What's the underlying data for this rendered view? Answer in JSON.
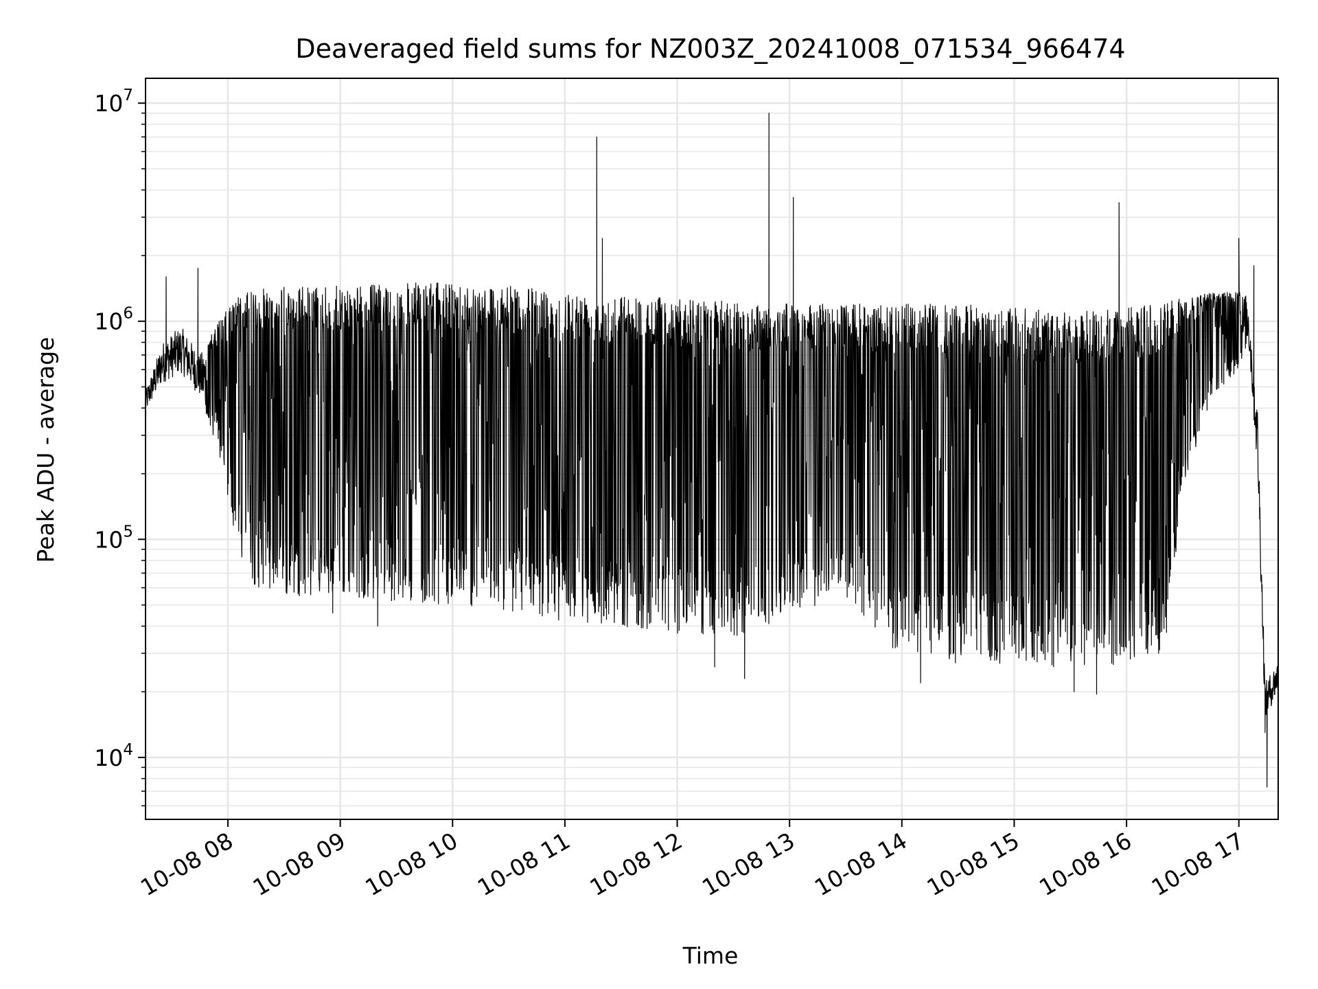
{
  "chart_data": {
    "type": "line",
    "title": "Deaveraged field sums for NZ003Z_20241008_071534_966474",
    "xlabel": "Time",
    "ylabel": "Peak ADU - average",
    "yscale": "log",
    "ylim": [
      5200,
      13000000
    ],
    "xlim": [
      "10-08 07:16",
      "10-08 17:21"
    ],
    "grid": true,
    "line_color": "#000000",
    "grid_color": "#e6e6e6",
    "x_ticks": [
      {
        "hour": 8,
        "label": "10-08 08"
      },
      {
        "hour": 9,
        "label": "10-08 09"
      },
      {
        "hour": 10,
        "label": "10-08 10"
      },
      {
        "hour": 11,
        "label": "10-08 11"
      },
      {
        "hour": 12,
        "label": "10-08 12"
      },
      {
        "hour": 13,
        "label": "10-08 13"
      },
      {
        "hour": 14,
        "label": "10-08 14"
      },
      {
        "hour": 15,
        "label": "10-08 15"
      },
      {
        "hour": 16,
        "label": "10-08 16"
      },
      {
        "hour": 17,
        "label": "10-08 17"
      }
    ],
    "y_ticks": [
      {
        "value": 10000,
        "base": "10",
        "exp": "4"
      },
      {
        "value": 100000,
        "base": "10",
        "exp": "5"
      },
      {
        "value": 1000000,
        "base": "10",
        "exp": "6"
      },
      {
        "value": 10000000,
        "base": "10",
        "exp": "7"
      }
    ],
    "series": [
      {
        "envelope": [
          {
            "time": "07:16",
            "upper": 480000,
            "lower": 380000
          },
          {
            "time": "07:25",
            "upper": 800000,
            "lower": 520000
          },
          {
            "time": "07:35",
            "upper": 950000,
            "lower": 580000
          },
          {
            "time": "07:45",
            "upper": 700000,
            "lower": 450000
          },
          {
            "time": "07:55",
            "upper": 1000000,
            "lower": 250000
          },
          {
            "time": "08:05",
            "upper": 1300000,
            "lower": 90000
          },
          {
            "time": "08:15",
            "upper": 1400000,
            "lower": 60000
          },
          {
            "time": "08:30",
            "upper": 1450000,
            "lower": 55000
          },
          {
            "time": "09:00",
            "upper": 1450000,
            "lower": 55000
          },
          {
            "time": "09:30",
            "upper": 1500000,
            "lower": 52000
          },
          {
            "time": "10:00",
            "upper": 1500000,
            "lower": 50000
          },
          {
            "time": "10:30",
            "upper": 1450000,
            "lower": 47000
          },
          {
            "time": "11:00",
            "upper": 1380000,
            "lower": 42000
          },
          {
            "time": "11:30",
            "upper": 1330000,
            "lower": 40000
          },
          {
            "time": "12:00",
            "upper": 1280000,
            "lower": 37000
          },
          {
            "time": "12:30",
            "upper": 1230000,
            "lower": 35000
          },
          {
            "time": "13:00",
            "upper": 1200000,
            "lower": 45000
          },
          {
            "time": "13:30",
            "upper": 1200000,
            "lower": 55000
          },
          {
            "time": "14:00",
            "upper": 1200000,
            "lower": 28000
          },
          {
            "time": "14:30",
            "upper": 1200000,
            "lower": 27000
          },
          {
            "time": "15:00",
            "upper": 1150000,
            "lower": 26000
          },
          {
            "time": "15:30",
            "upper": 1100000,
            "lower": 25000
          },
          {
            "time": "16:00",
            "upper": 1150000,
            "lower": 27000
          },
          {
            "time": "16:20",
            "upper": 1250000,
            "lower": 30000
          },
          {
            "time": "16:30",
            "upper": 1300000,
            "lower": 150000
          },
          {
            "time": "16:45",
            "upper": 1350000,
            "lower": 450000
          },
          {
            "time": "17:00",
            "upper": 1400000,
            "lower": 600000
          },
          {
            "time": "17:05",
            "upper": 1300000,
            "lower": 800000
          },
          {
            "time": "17:10",
            "upper": 400000,
            "lower": 200000
          },
          {
            "time": "17:14",
            "upper": 22000,
            "lower": 15000
          },
          {
            "time": "17:21",
            "upper": 28000,
            "lower": 20000
          }
        ],
        "spikes": [
          {
            "time": "11:17",
            "value": 7000000
          },
          {
            "time": "11:20",
            "value": 2400000
          },
          {
            "time": "12:49",
            "value": 9000000
          },
          {
            "time": "13:02",
            "value": 3700000
          },
          {
            "time": "15:56",
            "value": 3500000
          },
          {
            "time": "17:00",
            "value": 2400000
          },
          {
            "time": "17:08",
            "value": 1800000
          },
          {
            "time": "07:44",
            "value": 1750000
          },
          {
            "time": "07:27",
            "value": 1600000
          }
        ],
        "dips": [
          {
            "time": "12:36",
            "value": 23000
          },
          {
            "time": "12:20",
            "value": 26000
          },
          {
            "time": "15:32",
            "value": 20000
          },
          {
            "time": "15:44",
            "value": 19500
          },
          {
            "time": "14:10",
            "value": 22000
          },
          {
            "time": "17:15",
            "value": 7300
          },
          {
            "time": "17:14",
            "value": 13000
          },
          {
            "time": "09:20",
            "value": 40000
          },
          {
            "time": "08:56",
            "value": 46000
          }
        ]
      }
    ]
  }
}
